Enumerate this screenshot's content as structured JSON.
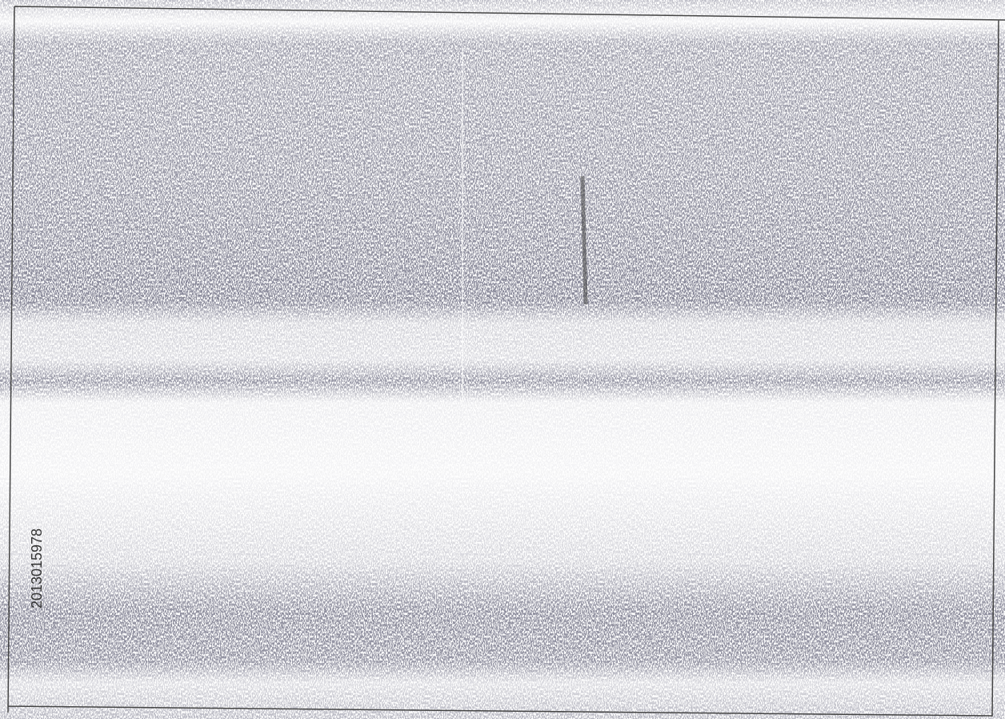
{
  "scan": {
    "serial": "2013015978"
  }
}
